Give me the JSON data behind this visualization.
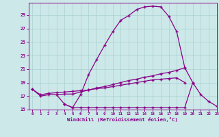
{
  "xlabel": "Windchill (Refroidissement éolien,°C)",
  "background_color": "#cce8e8",
  "grid_color": "#aad0d0",
  "line_color": "#880088",
  "x_values": [
    0,
    1,
    2,
    3,
    4,
    5,
    6,
    7,
    8,
    9,
    10,
    11,
    12,
    13,
    14,
    15,
    16,
    17,
    18,
    19,
    20,
    21,
    22,
    23
  ],
  "line1": [
    18.0,
    17.0,
    17.2,
    17.2,
    15.8,
    15.3,
    17.2,
    20.2,
    22.4,
    24.5,
    26.5,
    28.2,
    28.9,
    29.8,
    30.2,
    30.3,
    30.2,
    28.8,
    26.5,
    21.2,
    19.0,
    null,
    null,
    null
  ],
  "line2": [
    null,
    null,
    null,
    null,
    15.8,
    15.3,
    15.3,
    15.3,
    15.3,
    15.3,
    15.3,
    15.3,
    15.3,
    15.3,
    15.3,
    15.3,
    15.3,
    15.3,
    15.3,
    15.3,
    19.0,
    17.2,
    16.2,
    15.5
  ],
  "line3": [
    null,
    null,
    null,
    17.2,
    17.3,
    17.3,
    17.6,
    17.9,
    18.2,
    18.4,
    18.7,
    19.0,
    19.3,
    19.5,
    19.8,
    20.0,
    20.3,
    20.5,
    20.8,
    21.2,
    null,
    null,
    null,
    null
  ],
  "line4": [
    18.0,
    17.2,
    17.4,
    17.5,
    17.6,
    17.7,
    17.8,
    17.9,
    18.1,
    18.2,
    18.4,
    18.6,
    18.8,
    19.0,
    19.2,
    19.4,
    19.5,
    19.6,
    19.7,
    19.0,
    null,
    null,
    null,
    null
  ],
  "ylim": [
    15,
    30
  ],
  "xlim": [
    -0.5,
    23
  ],
  "yticks": [
    15,
    17,
    19,
    21,
    23,
    25,
    27,
    29
  ],
  "xticks": [
    0,
    1,
    2,
    3,
    4,
    5,
    6,
    7,
    8,
    9,
    10,
    11,
    12,
    13,
    14,
    15,
    16,
    17,
    18,
    19,
    20,
    21,
    22,
    23
  ]
}
